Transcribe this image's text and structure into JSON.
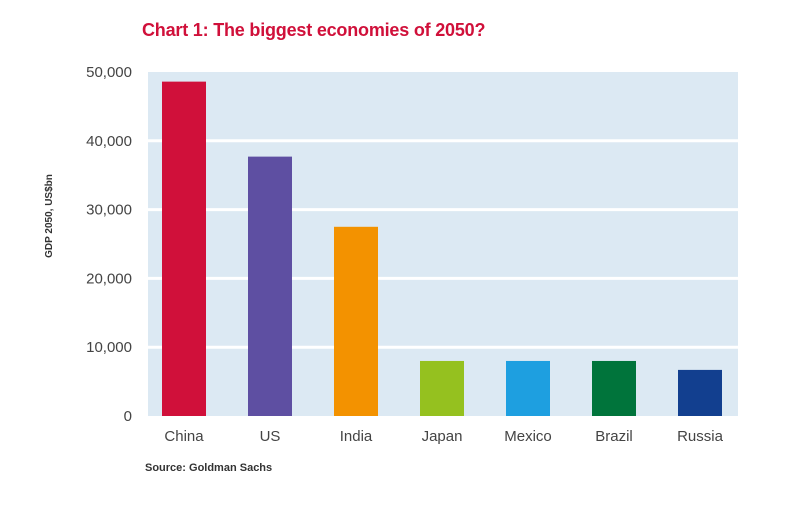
{
  "chart_data": {
    "type": "bar",
    "title": "Chart 1: The biggest economies of 2050?",
    "ylabel": "GDP 2050, US$bn",
    "xlabel": "",
    "source": "Source: Goldman Sachs",
    "ylim": [
      0,
      50000
    ],
    "yticks": [
      0,
      10000,
      20000,
      30000,
      40000,
      50000
    ],
    "ytick_labels": [
      "0",
      "10,000",
      "20,000",
      "30,000",
      "40,000",
      "50,000"
    ],
    "grid": true,
    "categories": [
      "China",
      "US",
      "India",
      "Japan",
      "Mexico",
      "Brazil",
      "Russia"
    ],
    "values": [
      48600,
      37700,
      27500,
      8000,
      8000,
      8000,
      6700
    ],
    "colors": [
      "#d0103a",
      "#5e4fa2",
      "#f39200",
      "#95c11f",
      "#1e9fe0",
      "#00743b",
      "#123f8f"
    ]
  },
  "style": {
    "plot_background": "#dce9f3",
    "gridline_color": "#ffffff",
    "title_color": "#d0103a"
  }
}
